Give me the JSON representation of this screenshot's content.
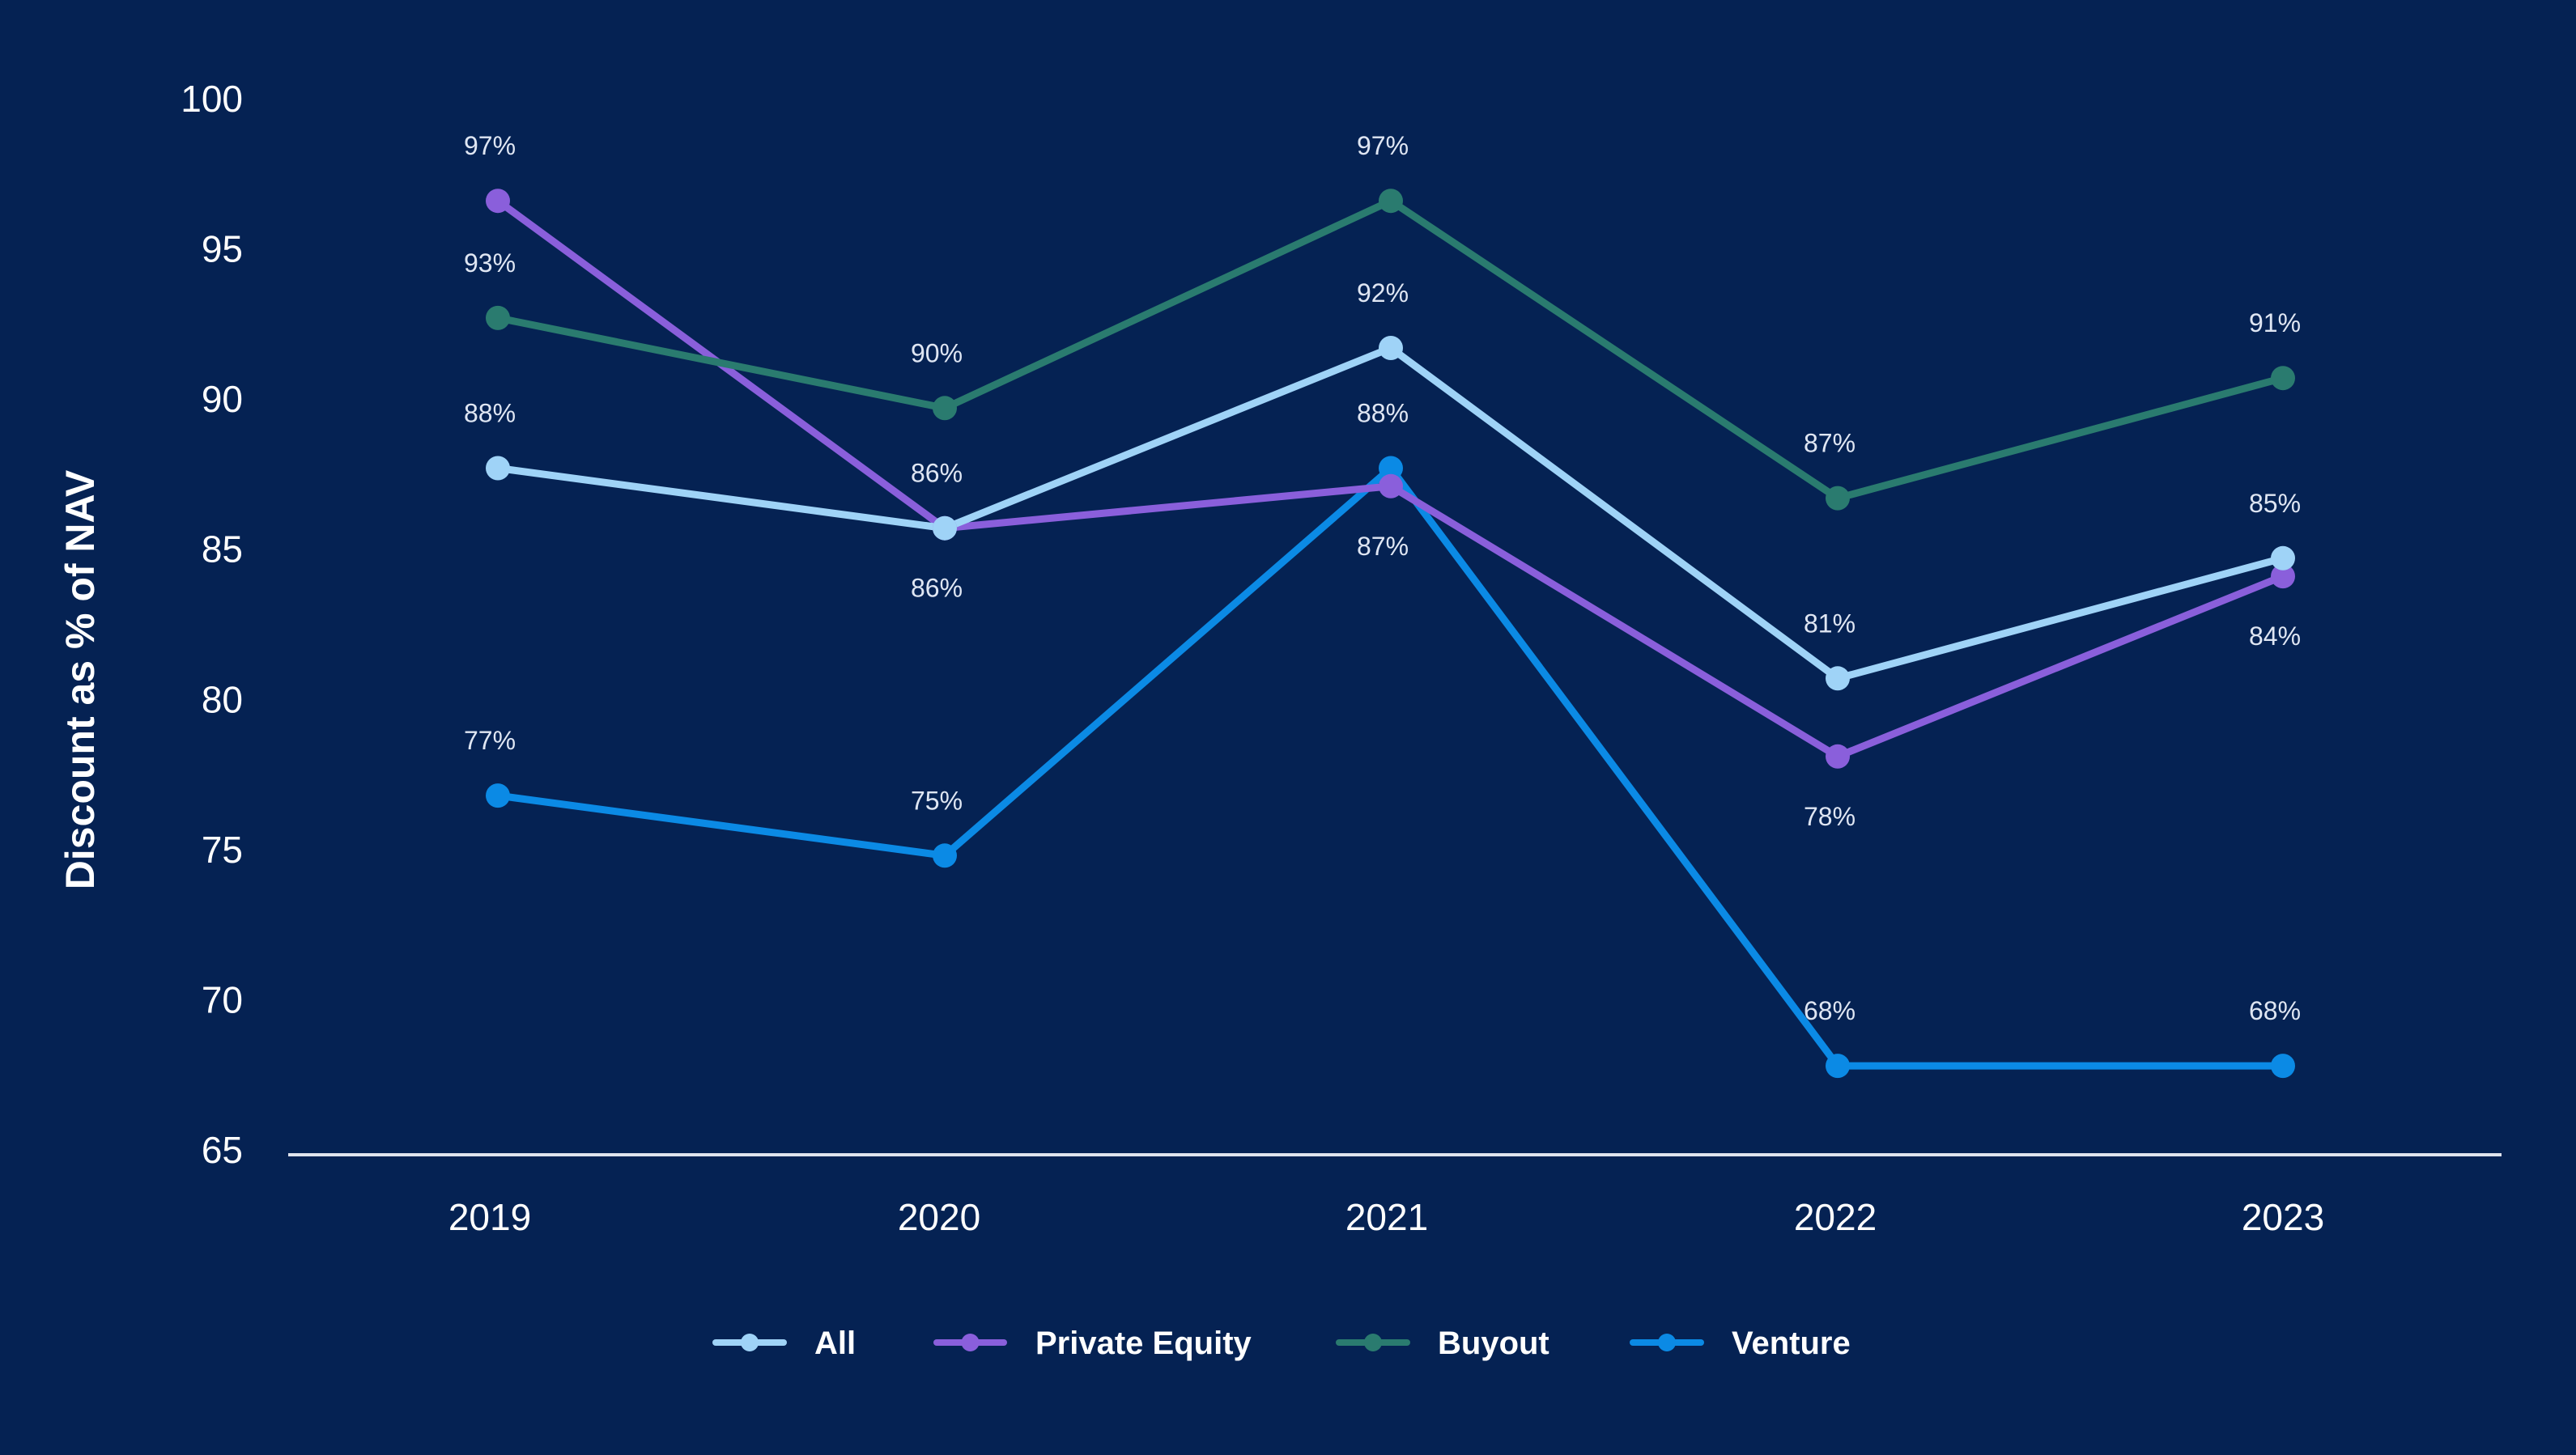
{
  "chart_data": {
    "type": "line",
    "title": "",
    "xlabel": "",
    "ylabel": "Discount as % of NAV",
    "categories": [
      "2019",
      "2020",
      "2021",
      "2022",
      "2023"
    ],
    "y_ticks": [
      "100",
      "95",
      "90",
      "85",
      "80",
      "75",
      "70",
      "65"
    ],
    "ylim": [
      65,
      100
    ],
    "grid": false,
    "legend_position": "bottom-center",
    "series": [
      {
        "name": "All",
        "color": "#9fd3f7",
        "values": [
          87.7,
          85.7,
          91.7,
          80.7,
          84.7
        ],
        "labels": [
          "88%",
          "86%",
          "92%",
          "81%",
          "85%"
        ],
        "label_positions": [
          "above",
          "above",
          "above",
          "above",
          "above"
        ]
      },
      {
        "name": "Private Equity",
        "color": "#8a5fdb",
        "values": [
          96.6,
          85.7,
          87.1,
          78.1,
          84.1
        ],
        "labels": [
          "97%",
          "86%",
          "87%",
          "78%",
          "84%"
        ],
        "label_positions": [
          "above",
          "below",
          "below",
          "below",
          "below"
        ]
      },
      {
        "name": "Buyout",
        "color": "#2a7b6f",
        "values": [
          92.7,
          89.7,
          96.6,
          86.7,
          90.7
        ],
        "labels": [
          "93%",
          "90%",
          "97%",
          "87%",
          "91%"
        ],
        "label_positions": [
          "above",
          "above",
          "above",
          "above",
          "above"
        ]
      },
      {
        "name": "Venture",
        "color": "#0b8ae5",
        "values": [
          76.8,
          74.8,
          87.7,
          67.8,
          67.8
        ],
        "labels": [
          "77%",
          "75%",
          "88%",
          "68%",
          "68%"
        ],
        "label_positions": [
          "above",
          "above",
          "above",
          "above",
          "above"
        ]
      }
    ]
  }
}
